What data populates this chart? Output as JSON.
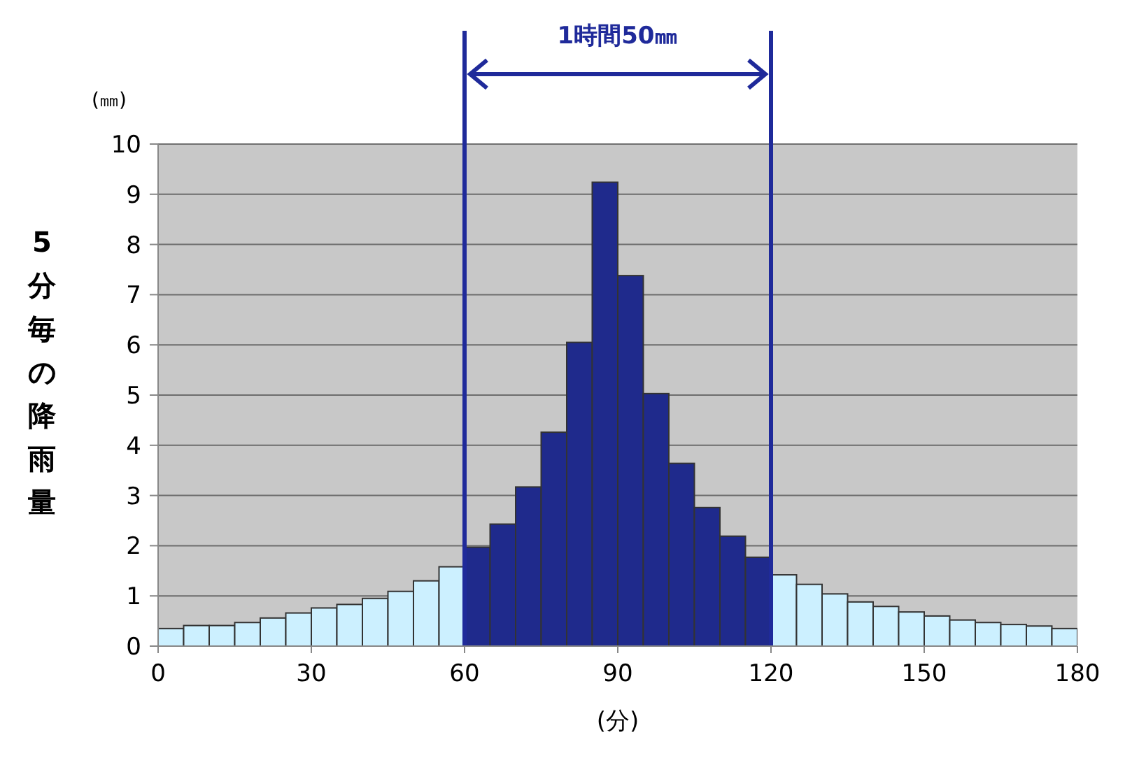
{
  "chart_data": {
    "type": "bar",
    "xlabel": "(分)",
    "ylabel": "5分毎の降雨量",
    "annotations": [
      "(㎜)",
      "1時間50㎜"
    ],
    "x": [
      2.5,
      7.5,
      12.5,
      17.5,
      22.5,
      27.5,
      32.5,
      37.5,
      42.5,
      47.5,
      52.5,
      57.5,
      62.5,
      67.5,
      72.5,
      77.5,
      82.5,
      87.5,
      92.5,
      97.5,
      102.5,
      107.5,
      112.5,
      117.5,
      122.5,
      127.5,
      132.5,
      137.5,
      142.5,
      147.5,
      152.5,
      157.5,
      162.5,
      167.5,
      172.5,
      177.5
    ],
    "values": [
      0.35,
      0.41,
      0.41,
      0.47,
      0.56,
      0.66,
      0.76,
      0.83,
      0.95,
      1.09,
      1.3,
      1.58,
      1.97,
      2.43,
      3.17,
      4.26,
      6.05,
      9.24,
      7.38,
      5.03,
      3.64,
      2.76,
      2.19,
      1.77,
      1.42,
      1.23,
      1.04,
      0.88,
      0.79,
      0.68,
      0.6,
      0.52,
      0.47,
      0.43,
      0.4,
      0.35
    ],
    "colors": [
      "#ccf0ff",
      "#ccf0ff",
      "#ccf0ff",
      "#ccf0ff",
      "#ccf0ff",
      "#ccf0ff",
      "#ccf0ff",
      "#ccf0ff",
      "#ccf0ff",
      "#ccf0ff",
      "#ccf0ff",
      "#ccf0ff",
      "#1f2a8c",
      "#1f2a8c",
      "#1f2a8c",
      "#1f2a8c",
      "#1f2a8c",
      "#1f2a8c",
      "#1f2a8c",
      "#1f2a8c",
      "#1f2a8c",
      "#1f2a8c",
      "#1f2a8c",
      "#1f2a8c",
      "#ccf0ff",
      "#ccf0ff",
      "#ccf0ff",
      "#ccf0ff",
      "#ccf0ff",
      "#ccf0ff",
      "#ccf0ff",
      "#ccf0ff",
      "#ccf0ff",
      "#ccf0ff",
      "#ccf0ff",
      "#ccf0ff"
    ],
    "xlim": [
      0,
      180
    ],
    "xticks": [
      0,
      30,
      60,
      90,
      120,
      150,
      180
    ],
    "ylim": [
      0,
      10
    ],
    "yticks": [
      0,
      1,
      2,
      3,
      4,
      5,
      6,
      7,
      8,
      9,
      10
    ],
    "grid": "y",
    "ref_lines": [
      {
        "axis": "x",
        "value": 60,
        "color": "#1f2a9a"
      },
      {
        "axis": "x",
        "value": 120,
        "color": "#1f2a9a"
      }
    ]
  }
}
